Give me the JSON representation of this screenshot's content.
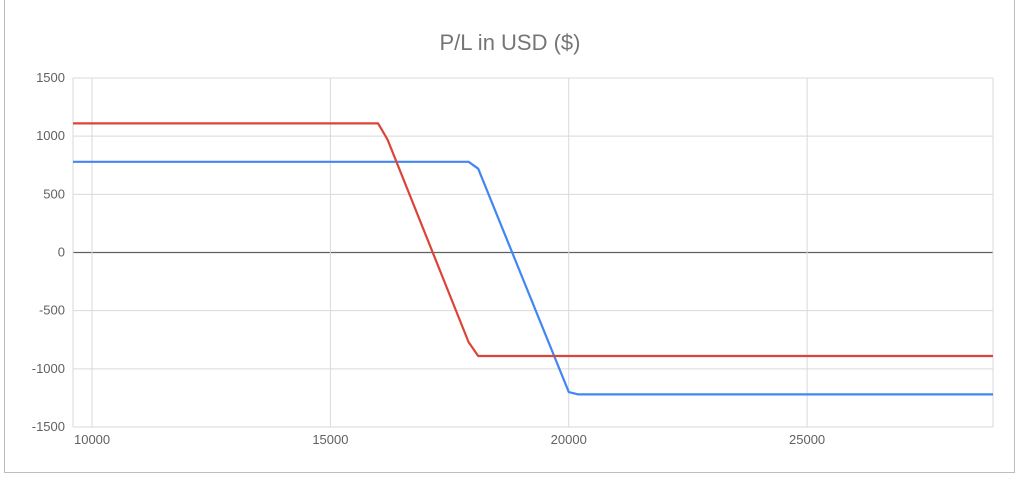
{
  "chart_data": {
    "type": "line",
    "title": "P/L in USD ($)",
    "xlabel": "",
    "ylabel": "",
    "xlim": [
      9600,
      28900
    ],
    "ylim": [
      -1500,
      1500
    ],
    "x_ticks": [
      10000,
      15000,
      20000,
      25000
    ],
    "y_ticks": [
      -1500,
      -1000,
      -500,
      0,
      500,
      1000,
      1500
    ],
    "grid": true,
    "legend": "none",
    "zero_line_color": "#616161",
    "grid_color": "#d9d9d9",
    "series": [
      {
        "color": "#4285f4",
        "points": [
          [
            9600,
            780
          ],
          [
            17900,
            780
          ],
          [
            18100,
            720
          ],
          [
            20000,
            -1200
          ],
          [
            20200,
            -1220
          ],
          [
            28900,
            -1220
          ]
        ]
      },
      {
        "color": "#db4437",
        "points": [
          [
            9600,
            1110
          ],
          [
            16000,
            1110
          ],
          [
            16200,
            970
          ],
          [
            17900,
            -770
          ],
          [
            18100,
            -890
          ],
          [
            28900,
            -890
          ]
        ]
      }
    ]
  }
}
